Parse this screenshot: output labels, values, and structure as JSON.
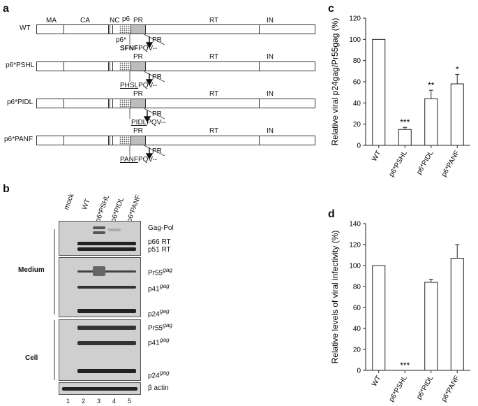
{
  "panels": {
    "a": "a",
    "b": "b",
    "c": "c",
    "d": "d"
  },
  "panel_a": {
    "rows": [
      {
        "name": "WT",
        "seq_prefix": "SFNF",
        "seq_suffix": "PQV--",
        "pr_arrow": "PR",
        "marker_p6star": "p6*"
      },
      {
        "name": "p6*PSHL",
        "seq_prefix": "PHSL",
        "seq_suffix": "PQV--",
        "pr_arrow": "PR"
      },
      {
        "name": "p6*PIDL",
        "seq_prefix": "PIDL",
        "seq_suffix": "PQV--",
        "pr_arrow": "PR"
      },
      {
        "name": "p6*PANF",
        "seq_prefix": "PANF",
        "seq_suffix": "PQV--",
        "pr_arrow": "PR"
      }
    ],
    "domains_top": [
      "MA",
      "CA",
      "NC",
      "p6"
    ],
    "domains": [
      "PR",
      "RT",
      "IN"
    ]
  },
  "panel_b": {
    "lanes": [
      "mock",
      "WT",
      "p6*PSHL",
      "p6*PIDL",
      "p6*PANF"
    ],
    "lane_numbers": [
      "1",
      "2",
      "3",
      "4",
      "5"
    ],
    "sections": {
      "medium": "Medium",
      "cell": "Cell"
    },
    "medium_labels": [
      "Gag-Pol",
      "p66 RT",
      "p51 RT",
      "Pr55",
      "p41",
      "p24"
    ],
    "cell_labels": [
      "Pr55",
      "p41",
      "p24"
    ],
    "gag_sup": "gag",
    "actin_label": "β actin"
  },
  "chart_data": [
    {
      "panel": "c",
      "type": "bar",
      "categories": [
        "WT",
        "p6*PSHL",
        "p6*PIDL",
        "p6*PANF"
      ],
      "values": [
        100,
        15,
        44,
        58
      ],
      "errors": [
        0,
        2,
        8,
        9
      ],
      "significance": [
        "",
        "***",
        "**",
        "*"
      ],
      "ylabel": "Relative viral p24gag/Pr55gag (%)",
      "ylim": [
        0,
        120
      ],
      "yticks": [
        0,
        20,
        40,
        60,
        80,
        100,
        120
      ]
    },
    {
      "panel": "d",
      "type": "bar",
      "categories": [
        "WT",
        "p6*PSHL",
        "p6*PIDL",
        "p6*PANF"
      ],
      "values": [
        100,
        0,
        84,
        107
      ],
      "errors": [
        0,
        0,
        3,
        13
      ],
      "significance": [
        "",
        "***",
        "",
        ""
      ],
      "ylabel": "Relative levels of viral infectivity (%)",
      "ylim": [
        0,
        140
      ],
      "yticks": [
        0,
        20,
        40,
        60,
        80,
        100,
        120,
        140
      ]
    }
  ]
}
